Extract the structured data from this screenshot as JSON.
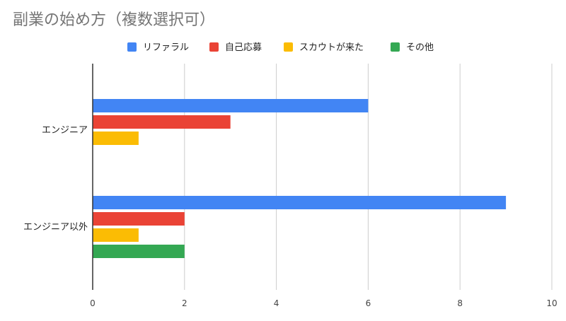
{
  "chart_data": {
    "type": "bar",
    "orientation": "horizontal",
    "title": "副業の始め方（複数選択可）",
    "categories": [
      "エンジニア",
      "エンジニア以外"
    ],
    "series": [
      {
        "name": "リファラル",
        "color": "#4285F4",
        "values": [
          6,
          9
        ]
      },
      {
        "name": "自己応募",
        "color": "#EA4335",
        "values": [
          3,
          2
        ]
      },
      {
        "name": "スカウトが来た",
        "color": "#FBBC04",
        "values": [
          1,
          1
        ]
      },
      {
        "name": "その他",
        "color": "#34A853",
        "values": [
          0,
          2
        ]
      }
    ],
    "xlim": [
      0,
      10
    ],
    "xticks": [
      "0",
      "2",
      "4",
      "6",
      "8",
      "10"
    ],
    "grid": true,
    "legend_position": "top"
  }
}
